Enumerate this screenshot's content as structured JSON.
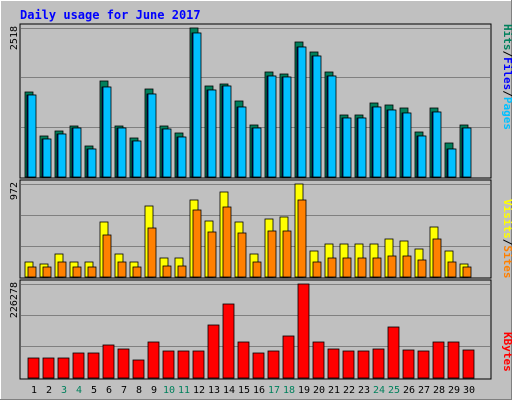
{
  "colors": {
    "background": "#C0C0C0",
    "title": "#0000FF",
    "grid": "#808080",
    "hits": "#00805C",
    "files": "#0000FF",
    "pages": "#00C0FF",
    "visits": "#FFFF00",
    "sites": "#FF8000",
    "kbytes": "#FF0000",
    "weekday_label": "#000000",
    "weekend_label": "#00805C"
  },
  "chart_data": [
    {
      "type": "bar",
      "title": "Daily usage for June 2017",
      "ylabel_max": "2518",
      "legend": [
        "Pages",
        "/",
        "Files",
        "/",
        "Hits"
      ],
      "categories": [
        "1",
        "2",
        "3",
        "4",
        "5",
        "6",
        "7",
        "8",
        "9",
        "10",
        "11",
        "12",
        "13",
        "14",
        "15",
        "16",
        "17",
        "18",
        "19",
        "20",
        "21",
        "22",
        "23",
        "24",
        "25",
        "26",
        "27",
        "28",
        "29",
        "30"
      ],
      "weekend_days": [
        "3",
        "4",
        "10",
        "11",
        "17",
        "18",
        "24",
        "25"
      ],
      "ylim": [
        0,
        2518
      ],
      "series": [
        {
          "name": "Hits",
          "values": [
            1440,
            700,
            770,
            860,
            530,
            1620,
            870,
            660,
            1490,
            870,
            740,
            2518,
            1530,
            1580,
            1290,
            880,
            1770,
            1740,
            2280,
            2110,
            1770,
            1040,
            1050,
            1250,
            1220,
            1170,
            760,
            1170,
            570,
            880
          ]
        },
        {
          "name": "Files",
          "values": [
            1390,
            640,
            720,
            820,
            470,
            1520,
            830,
            610,
            1400,
            810,
            680,
            2440,
            1470,
            1530,
            1180,
            830,
            1700,
            1690,
            2200,
            2040,
            1700,
            990,
            990,
            1180,
            1140,
            1080,
            700,
            1100,
            470,
            820
          ]
        },
        {
          "name": "Pages",
          "values": [
            1390,
            640,
            720,
            820,
            470,
            1520,
            830,
            610,
            1400,
            810,
            680,
            2440,
            1470,
            1530,
            1180,
            830,
            1700,
            1690,
            2200,
            2040,
            1700,
            990,
            990,
            1180,
            1140,
            1080,
            700,
            1100,
            470,
            820
          ]
        }
      ]
    },
    {
      "type": "bar",
      "ylabel_max": "972",
      "legend": [
        "Sites",
        "/",
        "Visits"
      ],
      "ylim": [
        0,
        972
      ],
      "series": [
        {
          "name": "Visits",
          "values": [
            160,
            140,
            240,
            160,
            160,
            580,
            240,
            160,
            740,
            200,
            200,
            800,
            590,
            890,
            580,
            240,
            610,
            630,
            972,
            270,
            340,
            340,
            340,
            340,
            400,
            380,
            290,
            520,
            270,
            140
          ]
        },
        {
          "name": "Sites",
          "values": [
            100,
            100,
            160,
            100,
            100,
            440,
            160,
            100,
            510,
            120,
            120,
            700,
            470,
            730,
            460,
            160,
            480,
            480,
            800,
            160,
            200,
            200,
            200,
            200,
            220,
            220,
            180,
            400,
            160,
            100
          ]
        }
      ]
    },
    {
      "type": "bar",
      "ylabel_max": "226278",
      "legend": [
        "KBytes"
      ],
      "ylim": [
        0,
        226278
      ],
      "series": [
        {
          "name": "KBytes",
          "values": [
            48000,
            48000,
            48000,
            59000,
            59000,
            79000,
            71000,
            43000,
            87000,
            66000,
            64000,
            66000,
            128000,
            177000,
            87000,
            59000,
            66000,
            102000,
            226278,
            87000,
            71000,
            66000,
            66000,
            71000,
            122000,
            68000,
            64000,
            87000,
            87000,
            68000
          ]
        }
      ]
    }
  ]
}
